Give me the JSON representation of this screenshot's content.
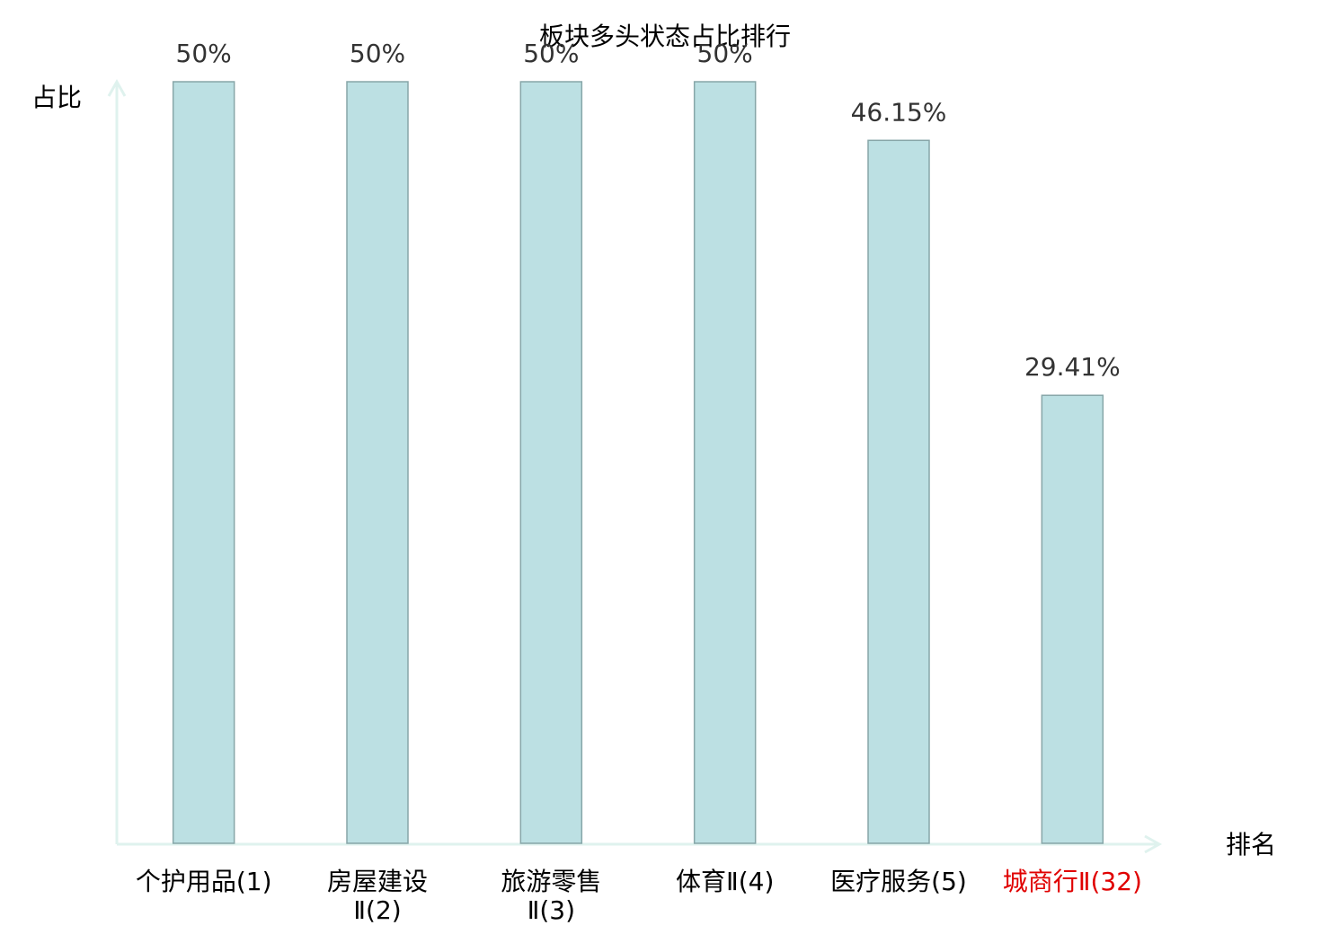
{
  "chart_data": {
    "type": "bar",
    "title": "板块多头状态占比排行",
    "y_label": "占比",
    "x_label": "排名",
    "categories": [
      [
        "个护用品(1)"
      ],
      [
        "房屋建设",
        "Ⅱ(2)"
      ],
      [
        "旅游零售",
        "Ⅱ(3)"
      ],
      [
        "体育Ⅱ(4)"
      ],
      [
        "医疗服务(5)"
      ],
      [
        "城商行Ⅱ(32)"
      ]
    ],
    "category_colors": [
      "#000000",
      "#000000",
      "#000000",
      "#000000",
      "#000000",
      "#e00000"
    ],
    "values": [
      50,
      50,
      50,
      50,
      46.15,
      29.41
    ],
    "value_labels": [
      "50%",
      "50%",
      "50%",
      "50%",
      "46.15%",
      "29.41%"
    ],
    "color": "#bce0e3",
    "edge_color": "#87a6a8",
    "axis_color": "#dff2ee",
    "ylim": [
      0,
      50
    ]
  }
}
